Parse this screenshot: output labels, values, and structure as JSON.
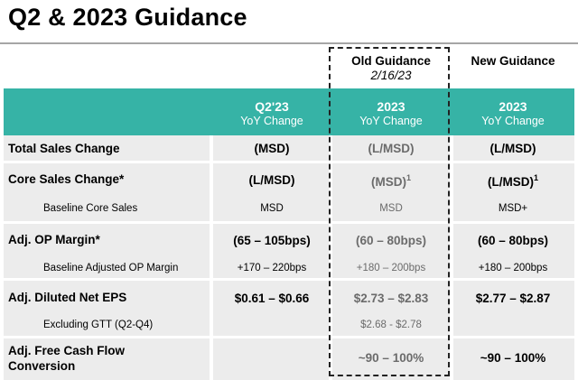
{
  "title": "Q2 & 2023 Guidance",
  "columns": {
    "old_guidance": {
      "label": "Old Guidance",
      "date": "2/16/23"
    },
    "new_guidance": {
      "label": "New Guidance"
    },
    "headers": [
      {
        "period": "Q2'23",
        "metric": "YoY Change"
      },
      {
        "period": "2023",
        "metric": "YoY Change"
      },
      {
        "period": "2023",
        "metric": "YoY Change"
      }
    ]
  },
  "rows": {
    "total_sales": {
      "label": "Total Sales Change",
      "q2": "(MSD)",
      "old": "(L/MSD)",
      "new": "(L/MSD)"
    },
    "core_sales": {
      "label": "Core Sales Change*",
      "q2": "(L/MSD)",
      "old": "(MSD)",
      "old_note": "1",
      "new": "(L/MSD)",
      "new_note": "1"
    },
    "baseline_core": {
      "label": "Baseline Core Sales",
      "q2": "MSD",
      "old": "MSD",
      "new": "MSD+"
    },
    "op_margin": {
      "label": "Adj. OP Margin*",
      "q2": "(65 – 105bps)",
      "old": "(60 – 80bps)",
      "new": "(60 – 80bps)"
    },
    "baseline_op": {
      "label": "Baseline Adjusted OP Margin",
      "q2": "+170 – 220bps",
      "old": "+180 – 200bps",
      "new": "+180 – 200bps"
    },
    "eps": {
      "label": "Adj. Diluted Net EPS",
      "q2": "$0.61 – $0.66",
      "old": "$2.73 – $2.83",
      "new": "$2.77 – $2.87"
    },
    "excl_gtt": {
      "label": "Excluding GTT (Q2-Q4)",
      "old": "$2.68 - $2.78"
    },
    "fcf": {
      "label_line1": "Adj. Free Cash Flow",
      "label_line2": "Conversion",
      "old": "~90 – 100%",
      "new": "~90 – 100%"
    }
  },
  "colors": {
    "accent": "#36b3a6",
    "band": "#ececec",
    "muted_text": "#6b6b6b"
  }
}
